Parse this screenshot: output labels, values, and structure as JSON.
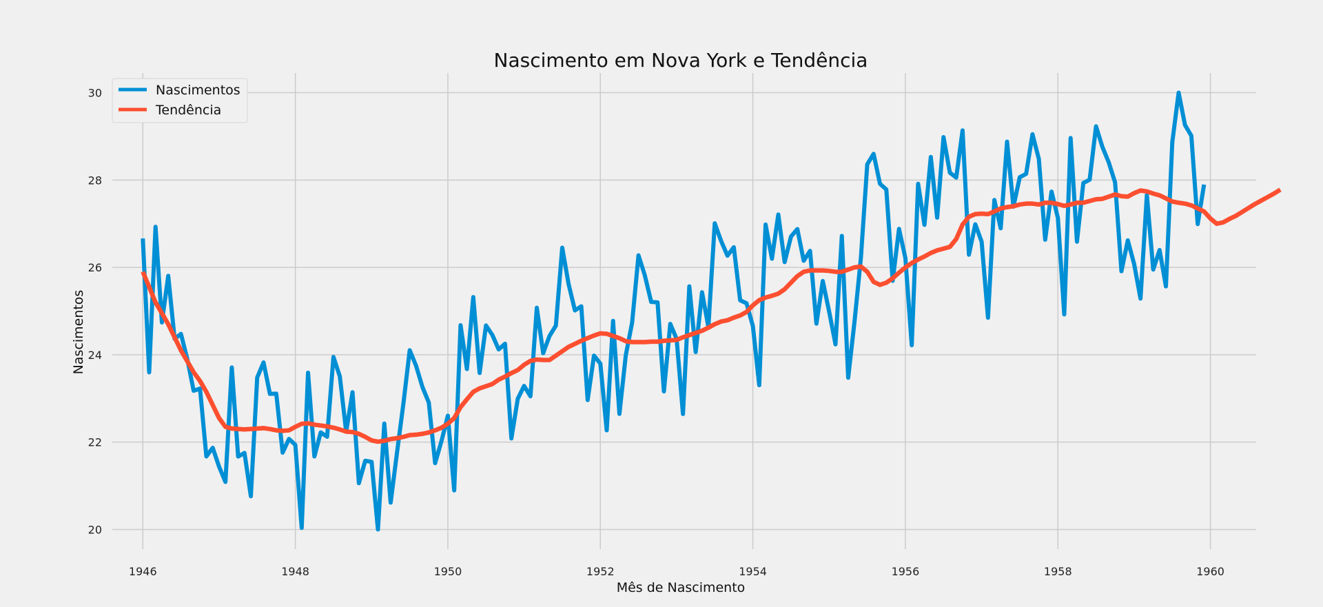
{
  "chart_data": {
    "type": "line",
    "title": "Nascimento em Nova York e Tendência",
    "xlabel": "Mês de Nascimento",
    "ylabel": "Nascimentos",
    "xlim": [
      1945.6,
      1960.6
    ],
    "ylim": [
      19.55,
      30.45
    ],
    "x_ticks": [
      1946,
      1948,
      1950,
      1952,
      1954,
      1956,
      1958,
      1960
    ],
    "y_ticks": [
      20,
      22,
      24,
      26,
      28,
      30
    ],
    "grid": true,
    "legend_position": "top-left",
    "x_start": "1946-01",
    "x_step": "month",
    "colors": {
      "background": "#f0f0f0",
      "grid": "#cbcbcb"
    },
    "series": [
      {
        "name": "Nascimentos",
        "color": "#008fd5",
        "values": [
          26.663,
          23.598,
          26.931,
          24.74,
          25.806,
          24.364,
          24.477,
          23.901,
          23.175,
          23.227,
          21.672,
          21.87,
          21.439,
          21.089,
          23.709,
          21.669,
          21.752,
          20.761,
          23.479,
          23.824,
          23.105,
          23.11,
          21.759,
          22.073,
          21.937,
          20.035,
          23.59,
          21.672,
          22.222,
          22.123,
          23.95,
          23.504,
          22.238,
          23.142,
          21.059,
          21.573,
          21.548,
          20.0,
          22.424,
          20.615,
          21.761,
          22.874,
          24.104,
          23.748,
          23.262,
          22.907,
          21.519,
          22.025,
          22.604,
          20.894,
          24.677,
          23.673,
          25.32,
          23.583,
          24.671,
          24.454,
          24.122,
          24.252,
          22.084,
          22.991,
          23.287,
          23.049,
          25.076,
          24.037,
          24.43,
          24.667,
          26.451,
          25.618,
          25.014,
          25.11,
          22.964,
          23.981,
          23.798,
          22.27,
          24.775,
          22.646,
          23.988,
          24.737,
          26.276,
          25.816,
          25.21,
          25.199,
          23.162,
          24.707,
          24.364,
          22.644,
          25.565,
          24.062,
          25.431,
          24.635,
          27.009,
          26.606,
          26.268,
          26.462,
          25.246,
          25.18,
          24.657,
          23.304,
          26.982,
          26.199,
          27.21,
          26.122,
          26.706,
          26.878,
          26.152,
          26.379,
          24.712,
          25.688,
          24.99,
          24.239,
          26.721,
          23.475,
          24.767,
          26.219,
          28.361,
          28.599,
          27.914,
          27.784,
          25.693,
          26.881,
          26.217,
          24.218,
          27.914,
          26.975,
          28.527,
          27.139,
          28.982,
          28.169,
          28.056,
          29.136,
          26.291,
          26.987,
          26.589,
          24.848,
          27.543,
          26.896,
          28.878,
          27.39,
          28.065,
          28.141,
          29.048,
          28.484,
          26.634,
          27.735,
          27.132,
          24.924,
          28.963,
          26.589,
          27.931,
          28.009,
          29.229,
          28.759,
          28.405,
          27.945,
          25.912,
          26.619,
          26.076,
          25.286,
          27.66,
          25.951,
          26.398,
          25.565,
          28.865,
          30.0,
          29.261,
          29.012,
          26.992,
          27.897
        ]
      },
      {
        "name": "Tendência",
        "color": "#fc4f30",
        "values": [
          25.9,
          25.55,
          25.2,
          24.95,
          24.7,
          24.4,
          24.1,
          23.85,
          23.6,
          23.4,
          23.15,
          22.85,
          22.55,
          22.35,
          22.31,
          22.3,
          22.29,
          22.3,
          22.31,
          22.32,
          22.3,
          22.27,
          22.26,
          22.27,
          22.35,
          22.42,
          22.43,
          22.4,
          22.38,
          22.36,
          22.33,
          22.29,
          22.24,
          22.23,
          22.19,
          22.12,
          22.04,
          22.01,
          22.03,
          22.07,
          22.09,
          22.12,
          22.16,
          22.17,
          22.19,
          22.22,
          22.27,
          22.33,
          22.42,
          22.55,
          22.8,
          22.98,
          23.15,
          23.23,
          23.28,
          23.33,
          23.43,
          23.5,
          23.58,
          23.65,
          23.77,
          23.86,
          23.89,
          23.88,
          23.88,
          23.98,
          24.08,
          24.18,
          24.25,
          24.32,
          24.38,
          24.44,
          24.49,
          24.48,
          24.43,
          24.38,
          24.31,
          24.29,
          24.29,
          24.29,
          24.3,
          24.3,
          24.32,
          24.33,
          24.34,
          24.4,
          24.45,
          24.5,
          24.55,
          24.62,
          24.7,
          24.76,
          24.79,
          24.85,
          24.9,
          24.98,
          25.13,
          25.25,
          25.31,
          25.35,
          25.4,
          25.5,
          25.65,
          25.8,
          25.9,
          25.93,
          25.93,
          25.93,
          25.92,
          25.9,
          25.9,
          25.95,
          26.0,
          26.02,
          25.9,
          25.67,
          25.6,
          25.65,
          25.75,
          25.88,
          26.0,
          26.1,
          26.18,
          26.25,
          26.33,
          26.39,
          26.43,
          26.47,
          26.65,
          26.98,
          27.16,
          27.22,
          27.23,
          27.22,
          27.28,
          27.35,
          27.38,
          27.4,
          27.44,
          27.46,
          27.46,
          27.44,
          27.48,
          27.48,
          27.45,
          27.41,
          27.44,
          27.48,
          27.48,
          27.52,
          27.56,
          27.57,
          27.62,
          27.67,
          27.63,
          27.62,
          27.7,
          27.76,
          27.74,
          27.69,
          27.65,
          27.58,
          27.51,
          27.48,
          27.46,
          27.42,
          27.35,
          27.28,
          27.12,
          27.0,
          27.03,
          27.11,
          27.18,
          27.27,
          27.36,
          27.45,
          27.53,
          27.61,
          27.69,
          27.78
        ]
      }
    ]
  }
}
